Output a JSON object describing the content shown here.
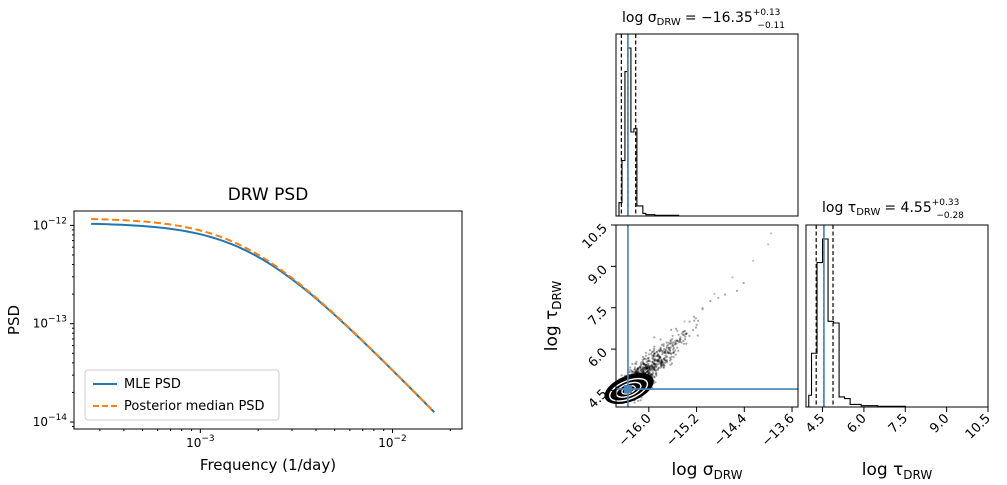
{
  "chart_data": [
    {
      "type": "line",
      "title": "DRW PSD",
      "xlabel": "Frequency (1/day)",
      "ylabel": "PSD",
      "xscale": "log",
      "yscale": "log",
      "xlim": [
        0.00022,
        0.023
      ],
      "ylim": [
        8.5e-15,
        1.4e-12
      ],
      "xticks": [
        {
          "value": 0.001,
          "base": "10",
          "exp": "−3"
        },
        {
          "value": 0.01,
          "base": "10",
          "exp": "−2"
        }
      ],
      "yticks": [
        {
          "value": 1e-12,
          "base": "10",
          "exp": "−12"
        },
        {
          "value": 1e-13,
          "base": "10",
          "exp": "−13"
        },
        {
          "value": 1e-14,
          "base": "10",
          "exp": "−14"
        }
      ],
      "legend_position": "lower-left",
      "freq_range": [
        0.00027,
        0.0165
      ],
      "series": [
        {
          "name": "MLE PSD",
          "color": "#1f77b4",
          "style": "solid",
          "plateau": 1.06e-12,
          "break_freq": 0.00181
        },
        {
          "name": "Posterior median PSD",
          "color": "#ff7f0e",
          "style": "dashed",
          "plateau": 1.19e-12,
          "break_freq": 0.00171
        }
      ]
    },
    {
      "type": "histogram",
      "panel": "marginal-sigma",
      "title_param": "log σ",
      "title_sub": "DRW",
      "title_value": "= −16.35",
      "title_up": "+0.13",
      "title_down": "−0.11",
      "xlim": [
        -16.55,
        -13.5
      ],
      "median": -16.35,
      "quantiles": [
        -16.46,
        -16.35,
        -16.22
      ],
      "truth": -16.35,
      "truth_color": "#4682b4",
      "bins": [
        {
          "x0": -16.55,
          "x1": -16.5,
          "h": 0.0
        },
        {
          "x0": -16.5,
          "x1": -16.45,
          "h": 0.08
        },
        {
          "x0": -16.45,
          "x1": -16.4,
          "h": 0.33
        },
        {
          "x0": -16.4,
          "x1": -16.35,
          "h": 0.86
        },
        {
          "x0": -16.35,
          "x1": -16.3,
          "h": 1.0
        },
        {
          "x0": -16.3,
          "x1": -16.25,
          "h": 0.5
        },
        {
          "x0": -16.25,
          "x1": -16.2,
          "h": 0.52
        },
        {
          "x0": -16.2,
          "x1": -16.15,
          "h": 0.06
        },
        {
          "x0": -16.15,
          "x1": -16.1,
          "h": 0.06
        },
        {
          "x0": -16.1,
          "x1": -16.05,
          "h": 0.015
        },
        {
          "x0": -16.05,
          "x1": -15.9,
          "h": 0.008
        },
        {
          "x0": -15.9,
          "x1": -15.5,
          "h": 0.004
        }
      ]
    },
    {
      "type": "scatter",
      "panel": "joint",
      "xlabel_param": "log σ",
      "xlabel_sub": "DRW",
      "ylabel_param": "log τ",
      "ylabel_sub": "DRW",
      "xlim": [
        -16.55,
        -13.5
      ],
      "ylim": [
        3.9,
        10.5
      ],
      "xticks": [
        "−16.0",
        "−15.2",
        "−14.4",
        "−13.6"
      ],
      "xtick_values": [
        -16.0,
        -15.2,
        -14.4,
        -13.6
      ],
      "yticks": [
        "4.5",
        "6.0",
        "7.5",
        "9.0",
        "10.5"
      ],
      "ytick_values": [
        4.5,
        6.0,
        7.5,
        9.0,
        10.5
      ],
      "truth": [
        -16.35,
        4.55
      ],
      "truth_color": "#4682b4",
      "trend": {
        "slope": 2.1,
        "sigma_x": 0.1,
        "sigma_y": 0.12
      },
      "outliers": [
        [
          -14.0,
          9.8
        ],
        [
          -13.95,
          10.2
        ],
        [
          -14.25,
          9.2
        ],
        [
          -14.6,
          8.6
        ],
        [
          -14.9,
          8.0
        ],
        [
          -15.1,
          7.5
        ],
        [
          -15.4,
          7.0
        ]
      ]
    },
    {
      "type": "histogram",
      "panel": "marginal-tau",
      "title_param": "log τ",
      "title_sub": "DRW",
      "title_value": "= 4.55",
      "title_up": "+0.33",
      "title_down": "−0.28",
      "xlim": [
        3.9,
        10.5
      ],
      "xticks": [
        "4.5",
        "6.0",
        "7.5",
        "9.0",
        "10.5"
      ],
      "xtick_values": [
        4.5,
        6.0,
        7.5,
        9.0,
        10.5
      ],
      "quantiles": [
        4.27,
        4.55,
        4.88
      ],
      "truth": 4.55,
      "truth_color": "#4682b4",
      "bins": [
        {
          "x0": 3.9,
          "x1": 4.0,
          "h": 0.0
        },
        {
          "x0": 4.0,
          "x1": 4.1,
          "h": 0.07
        },
        {
          "x0": 4.1,
          "x1": 4.3,
          "h": 0.32
        },
        {
          "x0": 4.3,
          "x1": 4.5,
          "h": 0.86
        },
        {
          "x0": 4.5,
          "x1": 4.7,
          "h": 1.0
        },
        {
          "x0": 4.7,
          "x1": 4.9,
          "h": 0.51
        },
        {
          "x0": 4.9,
          "x1": 5.1,
          "h": 0.5
        },
        {
          "x0": 5.1,
          "x1": 5.3,
          "h": 0.06
        },
        {
          "x0": 5.3,
          "x1": 5.5,
          "h": 0.05
        },
        {
          "x0": 5.5,
          "x1": 5.9,
          "h": 0.015
        },
        {
          "x0": 5.9,
          "x1": 6.5,
          "h": 0.008
        },
        {
          "x0": 6.5,
          "x1": 7.5,
          "h": 0.004
        }
      ]
    }
  ]
}
